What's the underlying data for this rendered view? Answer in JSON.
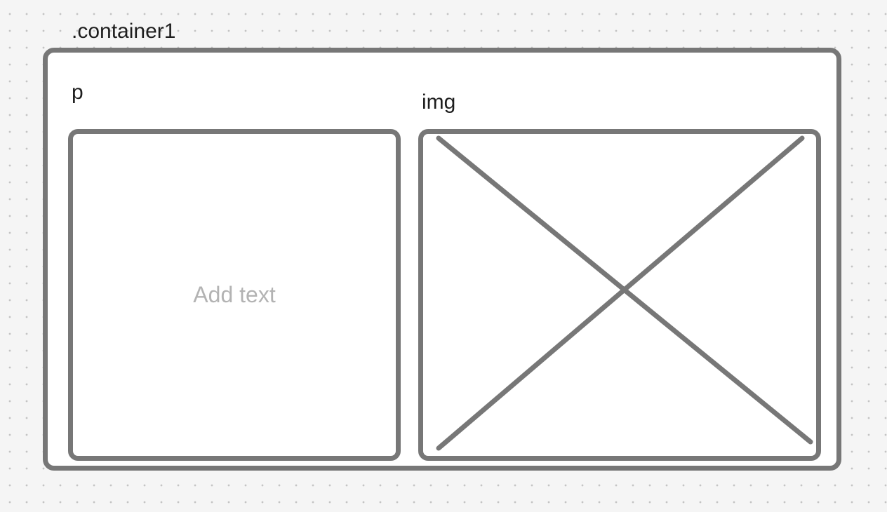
{
  "canvas": {
    "background_color": "#f5f5f5",
    "dot_color": "#c4c4c4",
    "stroke_color": "#777777",
    "fill_color": "#ffffff"
  },
  "container": {
    "label": ".container1"
  },
  "paragraph": {
    "label": "p",
    "placeholder": "Add text",
    "placeholder_color": "#b3b3b3"
  },
  "image": {
    "label": "img",
    "icon": "image-placeholder-cross-icon"
  }
}
